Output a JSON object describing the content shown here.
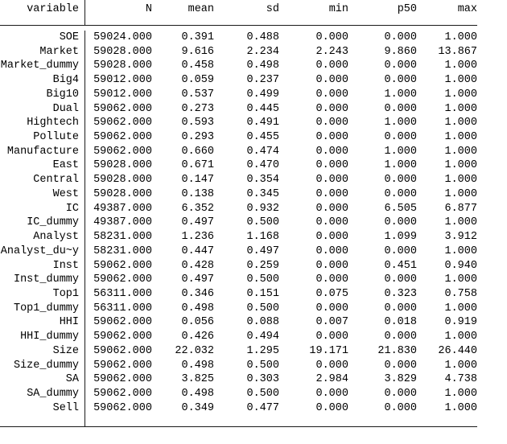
{
  "table": {
    "columns": [
      "variable",
      "N",
      "mean",
      "sd",
      "min",
      "p50",
      "max"
    ],
    "rows": [
      [
        "SOE",
        "59024.000",
        "0.391",
        "0.488",
        "0.000",
        "0.000",
        "1.000"
      ],
      [
        "Market",
        "59028.000",
        "9.616",
        "2.234",
        "2.243",
        "9.860",
        "13.867"
      ],
      [
        "Market_dummy",
        "59028.000",
        "0.458",
        "0.498",
        "0.000",
        "0.000",
        "1.000"
      ],
      [
        "Big4",
        "59012.000",
        "0.059",
        "0.237",
        "0.000",
        "0.000",
        "1.000"
      ],
      [
        "Big10",
        "59012.000",
        "0.537",
        "0.499",
        "0.000",
        "1.000",
        "1.000"
      ],
      [
        "Dual",
        "59062.000",
        "0.273",
        "0.445",
        "0.000",
        "0.000",
        "1.000"
      ],
      [
        "Hightech",
        "59062.000",
        "0.593",
        "0.491",
        "0.000",
        "1.000",
        "1.000"
      ],
      [
        "Pollute",
        "59062.000",
        "0.293",
        "0.455",
        "0.000",
        "0.000",
        "1.000"
      ],
      [
        "Manufacture",
        "59062.000",
        "0.660",
        "0.474",
        "0.000",
        "1.000",
        "1.000"
      ],
      [
        "East",
        "59028.000",
        "0.671",
        "0.470",
        "0.000",
        "1.000",
        "1.000"
      ],
      [
        "Central",
        "59028.000",
        "0.147",
        "0.354",
        "0.000",
        "0.000",
        "1.000"
      ],
      [
        "West",
        "59028.000",
        "0.138",
        "0.345",
        "0.000",
        "0.000",
        "1.000"
      ],
      [
        "IC",
        "49387.000",
        "6.352",
        "0.932",
        "0.000",
        "6.505",
        "6.877"
      ],
      [
        "IC_dummy",
        "49387.000",
        "0.497",
        "0.500",
        "0.000",
        "0.000",
        "1.000"
      ],
      [
        "Analyst",
        "58231.000",
        "1.236",
        "1.168",
        "0.000",
        "1.099",
        "3.912"
      ],
      [
        "Analyst_du~y",
        "58231.000",
        "0.447",
        "0.497",
        "0.000",
        "0.000",
        "1.000"
      ],
      [
        "Inst",
        "59062.000",
        "0.428",
        "0.259",
        "0.000",
        "0.451",
        "0.940"
      ],
      [
        "Inst_dummy",
        "59062.000",
        "0.497",
        "0.500",
        "0.000",
        "0.000",
        "1.000"
      ],
      [
        "Top1",
        "56311.000",
        "0.346",
        "0.151",
        "0.075",
        "0.323",
        "0.758"
      ],
      [
        "Top1_dummy",
        "56311.000",
        "0.498",
        "0.500",
        "0.000",
        "0.000",
        "1.000"
      ],
      [
        "HHI",
        "59062.000",
        "0.056",
        "0.088",
        "0.007",
        "0.018",
        "0.919"
      ],
      [
        "HHI_dummy",
        "59062.000",
        "0.426",
        "0.494",
        "0.000",
        "0.000",
        "1.000"
      ],
      [
        "Size",
        "59062.000",
        "22.032",
        "1.295",
        "19.171",
        "21.830",
        "26.440"
      ],
      [
        "Size_dummy",
        "59062.000",
        "0.498",
        "0.500",
        "0.000",
        "0.000",
        "1.000"
      ],
      [
        "SA",
        "59062.000",
        "3.825",
        "0.303",
        "2.984",
        "3.829",
        "4.738"
      ],
      [
        "SA_dummy",
        "59062.000",
        "0.498",
        "0.500",
        "0.000",
        "0.000",
        "1.000"
      ],
      [
        "Sell",
        "59062.000",
        "0.349",
        "0.477",
        "0.000",
        "0.000",
        "1.000"
      ]
    ],
    "colors": {
      "text": "#000000",
      "rule_lines": "#1a1a1a",
      "background": "#ffffff"
    }
  }
}
